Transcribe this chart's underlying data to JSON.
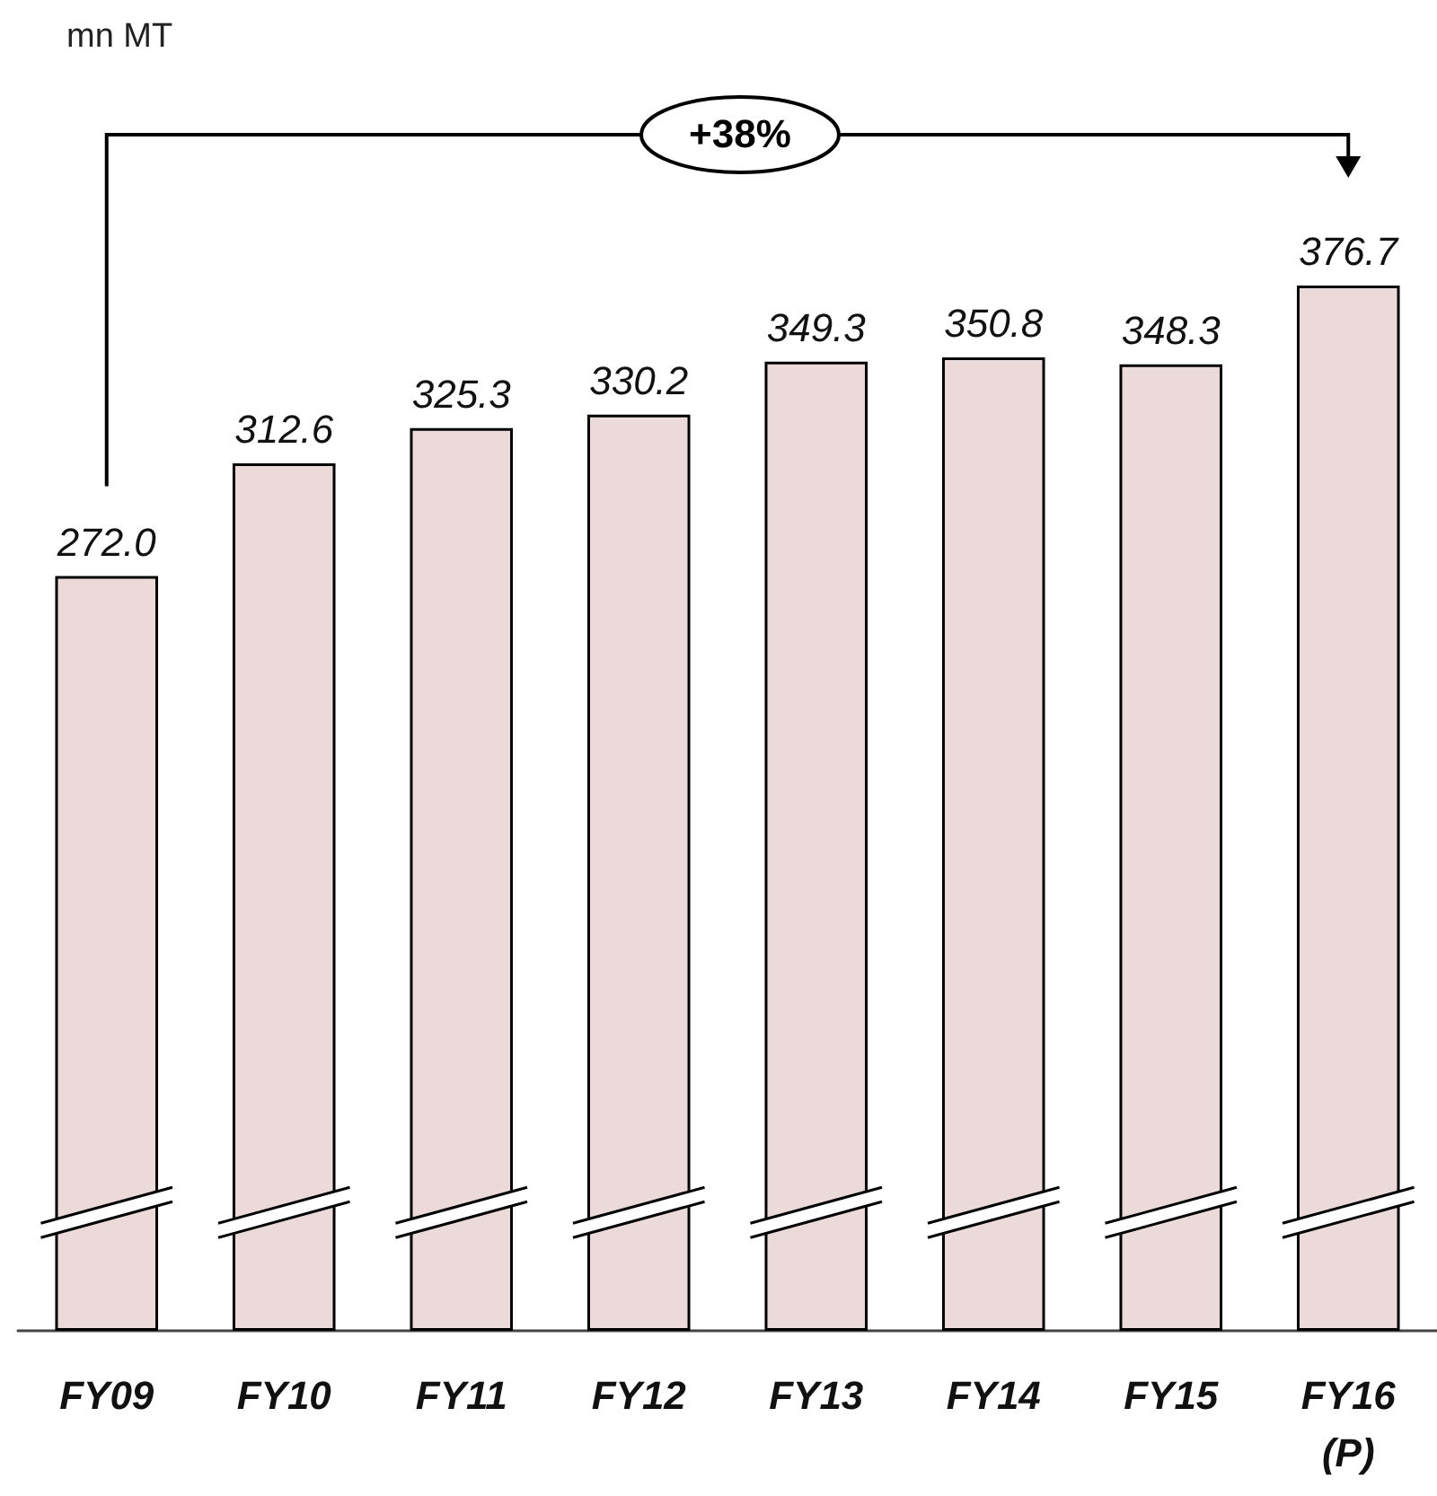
{
  "chart_data": {
    "type": "bar",
    "categories": [
      "FY09",
      "FY10",
      "FY11",
      "FY12",
      "FY13",
      "FY14",
      "FY15",
      "FY16 (P)"
    ],
    "values": [
      272.0,
      312.6,
      325.3,
      330.2,
      349.3,
      350.8,
      348.3,
      376.7
    ],
    "color": "#ecdada",
    "value_labels": [
      "272.0",
      "312.6",
      "325.3",
      "330.2",
      "349.3",
      "350.8",
      "348.3",
      "376.7"
    ],
    "annotations": [
      "mn MT",
      "+38%"
    ]
  }
}
